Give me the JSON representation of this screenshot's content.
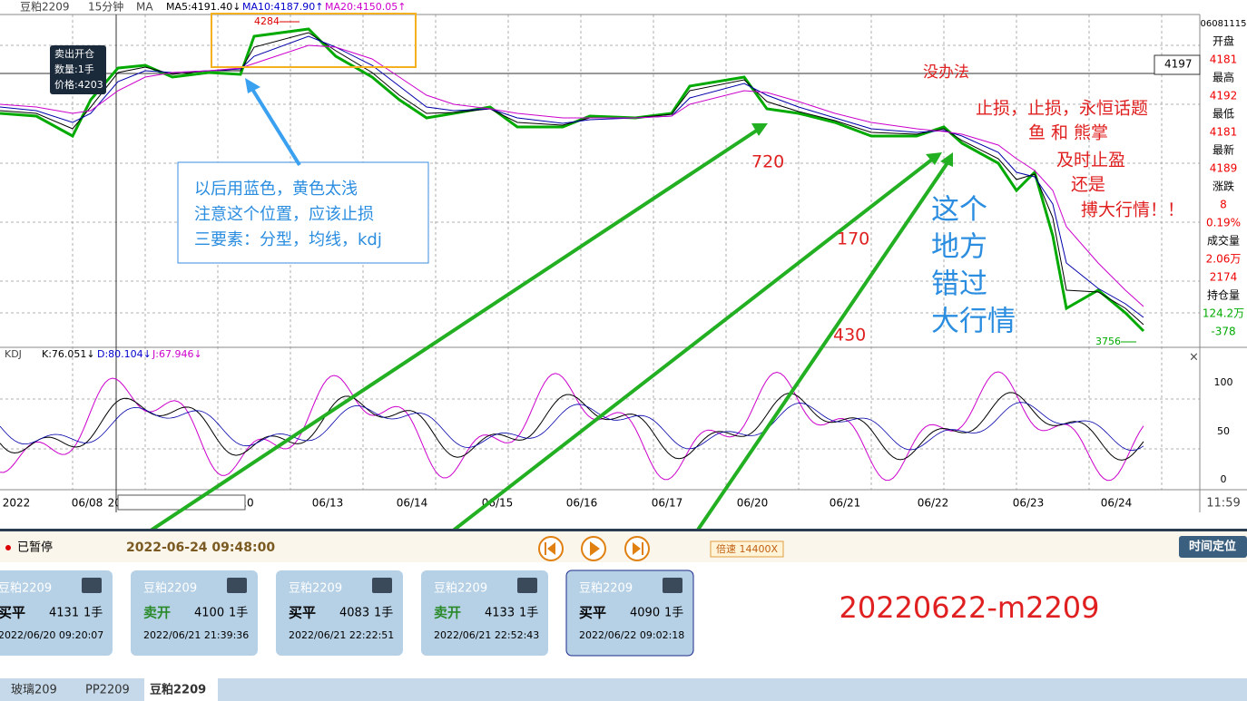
{
  "header": {
    "symbol": "豆粕2209",
    "period": "15分钟",
    "ma_label": "MA",
    "ma5": "MA5:4191.40↓",
    "ma10": "MA10:4187.90↑",
    "ma20": "MA20:4150.05↑"
  },
  "price_labels": {
    "high": "4284",
    "current": "4197",
    "low": "3756"
  },
  "tooltip": [
    "卖出开仓",
    "数量:1手",
    "价格:4203"
  ],
  "side_panel": [
    "06081115",
    "开盘",
    "4181",
    "最高",
    "4192",
    "最低",
    "4181",
    "最新",
    "4189",
    "涨跌",
    "8",
    "0.19%",
    "成交量",
    "2.06万",
    "2174",
    "持仓量",
    "124.2万",
    "-378"
  ],
  "kdj": {
    "label": "KDJ",
    "k": "K:76.051↓",
    "d": "D:80.104↓",
    "j": "J:67.946↓",
    "ticks": [
      "100",
      "50",
      "0"
    ]
  },
  "x_axis": {
    "labels": [
      "2022",
      "06/08",
      "2022/06/08 11:15:00 三",
      "10",
      "06/13",
      "06/14",
      "06/15",
      "06/16",
      "06/17",
      "06/20",
      "06/21",
      "06/22",
      "06/23",
      "06/24"
    ],
    "time": "11:59"
  },
  "annotations": {
    "note_box": [
      "以后用蓝色，黄色太浅",
      "注意这个位置，应该止损",
      "三要素：分型，均线，kdj"
    ],
    "no_choice": "没办法",
    "right_notes": [
      "止损，止损，永恒话题",
      "鱼 和 熊掌",
      "及时止盈",
      "还是",
      "搏大行情！！"
    ],
    "n720": "720",
    "n170": "170",
    "n430": "430",
    "big_note": [
      "这个",
      "地方",
      "错过",
      "大行情"
    ]
  },
  "controls": {
    "status": "已暂停",
    "datetime": "2022-06-24 09:48:00",
    "speed": "倍速 14400X",
    "locate": "时间定位"
  },
  "trades": [
    {
      "symbol": "豆粕2209",
      "action": "买平",
      "price": "4131",
      "qty": "1手",
      "time": "2022/06/20 09:20:07"
    },
    {
      "symbol": "豆粕2209",
      "action": "卖开",
      "price": "4100",
      "qty": "1手",
      "time": "2022/06/21 21:39:36"
    },
    {
      "symbol": "豆粕2209",
      "action": "买平",
      "price": "4083",
      "qty": "1手",
      "time": "2022/06/21 22:22:51"
    },
    {
      "symbol": "豆粕2209",
      "action": "卖开",
      "price": "4133",
      "qty": "1手",
      "time": "2022/06/21 22:52:43"
    },
    {
      "symbol": "豆粕2209",
      "action": "买平",
      "price": "4090",
      "qty": "1手",
      "time": "2022/06/22 09:02:18"
    }
  ],
  "big_label": "20220622-m2209",
  "tabs": [
    "玻璃209",
    "PP2209",
    "豆粕2209"
  ]
}
